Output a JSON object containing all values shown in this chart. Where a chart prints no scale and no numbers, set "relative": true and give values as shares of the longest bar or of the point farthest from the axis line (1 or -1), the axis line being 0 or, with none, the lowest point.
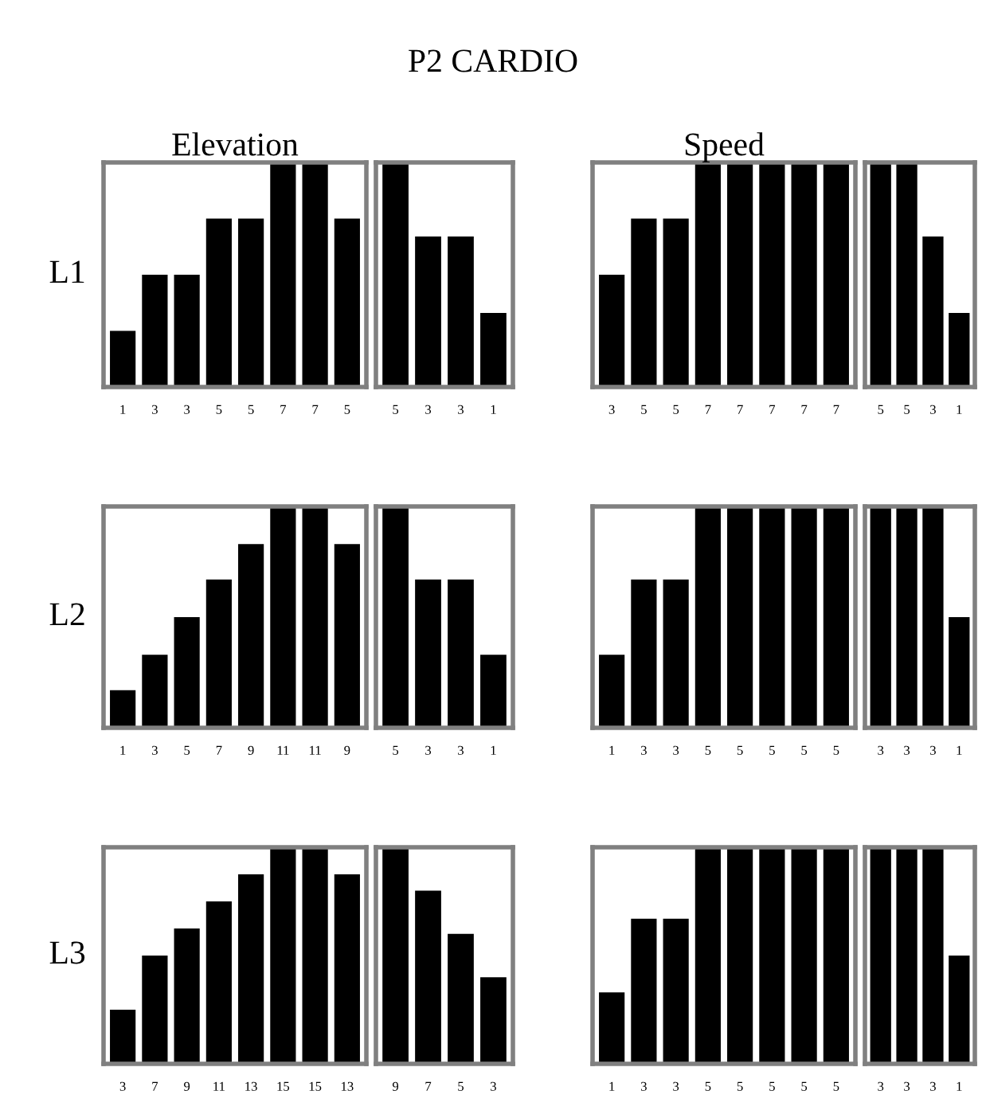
{
  "chart_data": [
    {
      "type": "bar",
      "title": "Elevation",
      "ylabel": "L1",
      "annotations": [
        "P2 CARDIO"
      ],
      "relative": true,
      "tick_labels": "x",
      "color": "#000000",
      "categories": [
        "1",
        "3",
        "3",
        "5",
        "5",
        "7",
        "7",
        "5"
      ],
      "values": [
        0.25,
        0.5,
        0.5,
        0.75,
        0.75,
        1,
        1,
        0.75
      ]
    },
    {
      "type": "bar",
      "relative": true,
      "tick_labels": "x",
      "color": "#000000",
      "categories": [
        "5",
        "3",
        "3",
        "1"
      ],
      "values": [
        1,
        0.67,
        0.67,
        0.33
      ]
    },
    {
      "type": "bar",
      "title": "Speed",
      "relative": true,
      "tick_labels": "x",
      "color": "#000000",
      "categories": [
        "3",
        "5",
        "5",
        "7",
        "7",
        "7",
        "7",
        "7"
      ],
      "values": [
        0.5,
        0.75,
        0.75,
        1,
        1,
        1,
        1,
        1
      ]
    },
    {
      "type": "bar",
      "relative": true,
      "tick_labels": "x",
      "color": "#000000",
      "categories": [
        "5",
        "5",
        "3",
        "1"
      ],
      "values": [
        1,
        1,
        0.67,
        0.33
      ]
    },
    {
      "type": "bar",
      "ylabel": "L2",
      "relative": true,
      "tick_labels": "x",
      "color": "#000000",
      "categories": [
        "1",
        "3",
        "5",
        "7",
        "9",
        "11",
        "11",
        "9"
      ],
      "values": [
        0.17,
        0.33,
        0.5,
        0.67,
        0.83,
        1,
        1,
        0.83
      ]
    },
    {
      "type": "bar",
      "relative": true,
      "tick_labels": "x",
      "color": "#000000",
      "categories": [
        "5",
        "3",
        "3",
        "1"
      ],
      "values": [
        1,
        0.67,
        0.67,
        0.33
      ]
    },
    {
      "type": "bar",
      "relative": true,
      "tick_labels": "x",
      "color": "#000000",
      "categories": [
        "1",
        "3",
        "3",
        "5",
        "5",
        "5",
        "5",
        "5"
      ],
      "values": [
        0.33,
        0.67,
        0.67,
        1,
        1,
        1,
        1,
        1
      ]
    },
    {
      "type": "bar",
      "relative": true,
      "tick_labels": "x",
      "color": "#000000",
      "categories": [
        "3",
        "3",
        "3",
        "1"
      ],
      "values": [
        1,
        1,
        1,
        0.5
      ]
    },
    {
      "type": "bar",
      "ylabel": "L3",
      "relative": true,
      "tick_labels": "x",
      "color": "#000000",
      "categories": [
        "3",
        "7",
        "9",
        "11",
        "13",
        "15",
        "15",
        "13"
      ],
      "values": [
        0.25,
        0.5,
        0.625,
        0.75,
        0.875,
        1,
        1,
        0.875
      ]
    },
    {
      "type": "bar",
      "relative": true,
      "tick_labels": "x",
      "color": "#000000",
      "categories": [
        "9",
        "7",
        "5",
        "3"
      ],
      "values": [
        1,
        0.8,
        0.6,
        0.4
      ]
    },
    {
      "type": "bar",
      "relative": true,
      "tick_labels": "x",
      "color": "#000000",
      "categories": [
        "1",
        "3",
        "3",
        "5",
        "5",
        "5",
        "5",
        "5"
      ],
      "values": [
        0.33,
        0.67,
        0.67,
        1,
        1,
        1,
        1,
        1
      ]
    },
    {
      "type": "bar",
      "relative": true,
      "tick_labels": "x",
      "color": "#000000",
      "categories": [
        "3",
        "3",
        "3",
        "1"
      ],
      "values": [
        1,
        1,
        1,
        0.5
      ]
    }
  ]
}
